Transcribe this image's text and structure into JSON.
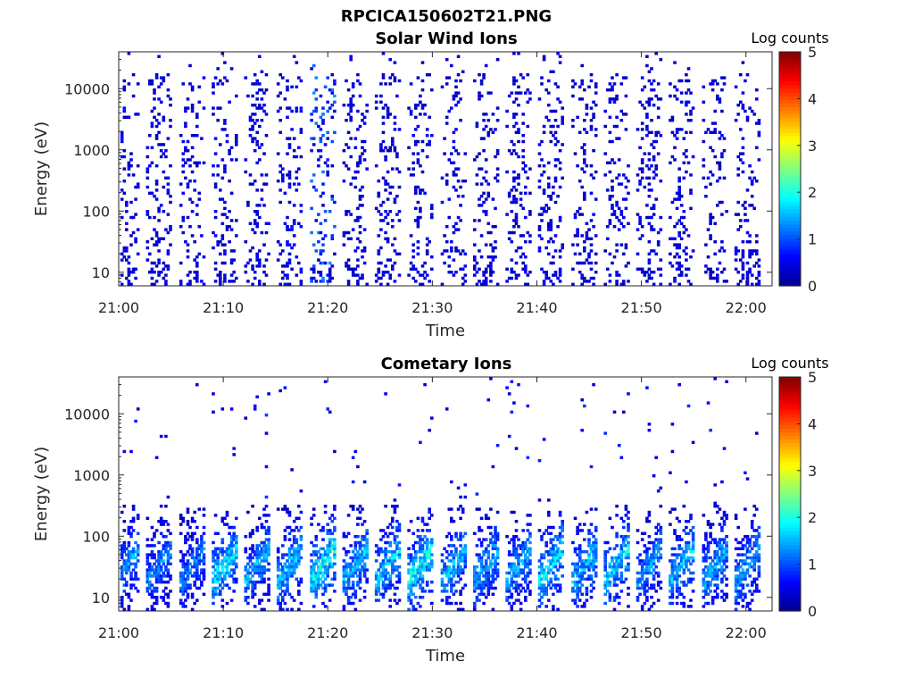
{
  "figure_title": "RPCICA150602T21.PNG",
  "colors": {
    "colormap": [
      "#00008f",
      "#0000ff",
      "#0080ff",
      "#00ffff",
      "#80ff80",
      "#ffff00",
      "#ff8000",
      "#ff0000",
      "#800000"
    ],
    "axis": "#262626"
  },
  "chart_data": [
    {
      "type": "heatmap",
      "title": "Solar Wind Ions",
      "xlabel": "Time",
      "ylabel": "Energy (eV)",
      "y_scale": "log",
      "y_ticks": [
        10,
        100,
        1000,
        10000
      ],
      "y_tick_labels": [
        "10",
        "100",
        "1000",
        "10000"
      ],
      "ylim": [
        6,
        40000
      ],
      "x_ticks": [
        "21:00",
        "21:10",
        "21:20",
        "21:30",
        "21:40",
        "21:50",
        "22:00"
      ],
      "x_tick_minutes": [
        0,
        10,
        20,
        30,
        40,
        50,
        60
      ],
      "xlim_minutes": [
        0,
        62.5
      ],
      "colorbar": {
        "label": "Log counts",
        "ticks": [
          0,
          1,
          2,
          3,
          4,
          5
        ],
        "range": [
          0,
          5
        ]
      },
      "sweep_minutes": [
        0.5,
        3.6,
        6.8,
        9.9,
        13.0,
        16.1,
        19.3,
        22.4,
        25.5,
        28.6,
        31.8,
        34.9,
        38.0,
        41.1,
        44.3,
        47.4,
        50.5,
        53.6,
        56.8,
        59.9
      ],
      "sweep_peak_log_counts": [
        0.4,
        0.4,
        0.4,
        0.4,
        0.4,
        0.5,
        1.2,
        0.4,
        0.4,
        0.4,
        0.4,
        0.4,
        0.4,
        0.4,
        0.4,
        0.4,
        0.4,
        0.4,
        0.4,
        0.4
      ]
    },
    {
      "type": "heatmap",
      "title": "Cometary Ions",
      "xlabel": "Time",
      "ylabel": "Energy (eV)",
      "y_scale": "log",
      "y_ticks": [
        10,
        100,
        1000,
        10000
      ],
      "y_tick_labels": [
        "10",
        "100",
        "1000",
        "10000"
      ],
      "ylim": [
        6,
        40000
      ],
      "x_ticks": [
        "21:00",
        "21:10",
        "21:20",
        "21:30",
        "21:40",
        "21:50",
        "22:00"
      ],
      "x_tick_minutes": [
        0,
        10,
        20,
        30,
        40,
        50,
        60
      ],
      "xlim_minutes": [
        0,
        62.5
      ],
      "colorbar": {
        "label": "Log counts",
        "ticks": [
          0,
          1,
          2,
          3,
          4,
          5
        ],
        "range": [
          0,
          5
        ]
      },
      "sweep_minutes": [
        0.5,
        3.6,
        6.8,
        9.9,
        13.0,
        16.1,
        19.3,
        22.4,
        25.5,
        28.6,
        31.8,
        34.9,
        38.0,
        41.1,
        44.3,
        47.4,
        50.5,
        53.6,
        56.8,
        59.9
      ],
      "sweep_peak_log_counts": [
        1.6,
        1.5,
        1.4,
        2.0,
        1.7,
        1.9,
        2.2,
        1.8,
        1.9,
        2.2,
        1.8,
        1.7,
        1.7,
        2.0,
        1.8,
        2.0,
        1.6,
        1.8,
        1.7,
        1.7
      ]
    }
  ]
}
